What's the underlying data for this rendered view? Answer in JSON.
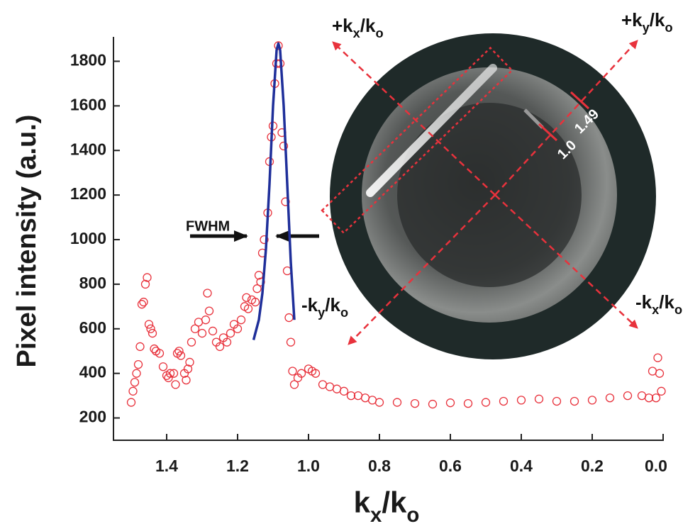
{
  "chart_data": {
    "type": "scatter",
    "y_label": "Pixel intensity (a.u.)",
    "x_label_parts": [
      "k",
      "x",
      "/k",
      "o"
    ],
    "xlim": [
      1.55,
      0.0
    ],
    "ylim": [
      100,
      1900
    ],
    "xticks": [
      1.4,
      1.2,
      {
        "value": 1,
        "label": "1.0"
      },
      0.8,
      0.6,
      0.4,
      0.2,
      {
        "value": 0,
        "label": "0.0"
      }
    ],
    "yticks": [
      200,
      400,
      600,
      800,
      1000,
      1200,
      1400,
      1600,
      1800
    ],
    "annotation": "FWHM",
    "series": [
      {
        "type": "scatter",
        "color": "#e8323c",
        "x": [
          1.5,
          1.495,
          1.49,
          1.485,
          1.48,
          1.475,
          1.47,
          1.465,
          1.46,
          1.455,
          1.45,
          1.445,
          1.44,
          1.435,
          1.43,
          1.42,
          1.41,
          1.4,
          1.395,
          1.39,
          1.38,
          1.375,
          1.37,
          1.365,
          1.36,
          1.35,
          1.345,
          1.34,
          1.335,
          1.33,
          1.32,
          1.31,
          1.3,
          1.29,
          1.285,
          1.28,
          1.27,
          1.26,
          1.25,
          1.24,
          1.23,
          1.22,
          1.21,
          1.2,
          1.19,
          1.18,
          1.175,
          1.17,
          1.16,
          1.15,
          1.145,
          1.14,
          1.135,
          1.13,
          1.125,
          1.115,
          1.11,
          1.105,
          1.1,
          1.095,
          1.09,
          1.085,
          1.08,
          1.075,
          1.07,
          1.065,
          1.06,
          1.055,
          1.05,
          1.045,
          1.04,
          1.03,
          1.02,
          1.0,
          0.99,
          0.98,
          0.96,
          0.94,
          0.92,
          0.9,
          0.88,
          0.86,
          0.84,
          0.82,
          0.8,
          0.75,
          0.7,
          0.65,
          0.6,
          0.55,
          0.5,
          0.45,
          0.4,
          0.35,
          0.3,
          0.25,
          0.2,
          0.15,
          0.1,
          0.06,
          0.04,
          0.03,
          0.02,
          0.015,
          0.01,
          0.005
        ],
        "values": [
          270,
          320,
          360,
          400,
          440,
          520,
          710,
          720,
          800,
          830,
          620,
          600,
          580,
          510,
          500,
          490,
          430,
          390,
          380,
          400,
          400,
          350,
          490,
          500,
          480,
          400,
          370,
          420,
          450,
          540,
          600,
          630,
          580,
          640,
          760,
          680,
          590,
          540,
          520,
          560,
          540,
          580,
          620,
          600,
          640,
          700,
          740,
          690,
          730,
          720,
          780,
          840,
          810,
          940,
          1000,
          1120,
          1350,
          1460,
          1510,
          1700,
          1790,
          1870,
          1790,
          1480,
          1420,
          1170,
          860,
          650,
          540,
          410,
          350,
          380,
          400,
          420,
          410,
          400,
          350,
          340,
          330,
          320,
          300,
          300,
          290,
          280,
          270,
          270,
          265,
          262,
          268,
          265,
          270,
          275,
          280,
          285,
          275,
          275,
          280,
          290,
          300,
          300,
          290,
          410,
          290,
          470,
          400,
          320
        ]
      },
      {
        "type": "line",
        "color": "#1f2f9a",
        "x": [
          1.155,
          1.14,
          1.13,
          1.12,
          1.11,
          1.1,
          1.09,
          1.085,
          1.08,
          1.07,
          1.06,
          1.05,
          1.04
        ],
        "values": [
          550,
          640,
          760,
          960,
          1250,
          1600,
          1850,
          1880,
          1850,
          1600,
          1250,
          900,
          640
        ]
      }
    ],
    "inset": {
      "axis_labels": [
        {
          "parts": [
            "+k",
            "x",
            "/k",
            "o"
          ]
        },
        {
          "parts": [
            "+k",
            "y",
            "/k",
            "o"
          ]
        },
        {
          "parts": [
            "-k",
            "y",
            "/k",
            "o"
          ]
        },
        {
          "parts": [
            "-k",
            "x",
            "/k",
            "o"
          ]
        }
      ],
      "scale_labels": [
        "1.49",
        "1.0"
      ]
    }
  }
}
